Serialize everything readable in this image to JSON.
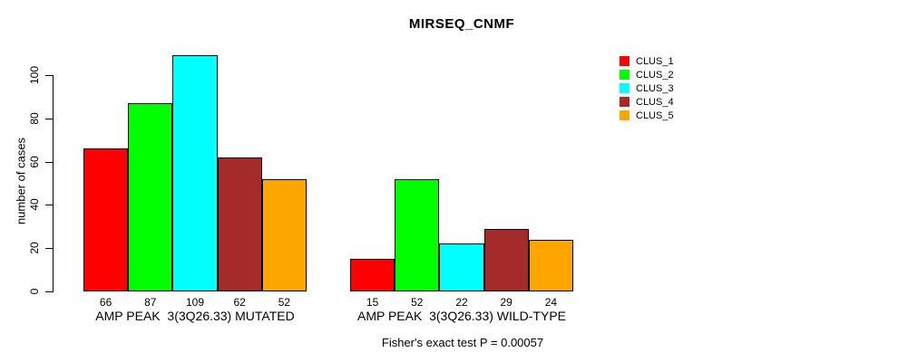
{
  "title": "MIRSEQ_CNMF",
  "ylabel": "number of cases",
  "footnote": "Fisher's exact test P = 0.00057",
  "chart_data": {
    "type": "bar",
    "title": "MIRSEQ_CNMF",
    "ylabel": "number of cases",
    "xlabel": "",
    "ylim": [
      0,
      109
    ],
    "yticks": [
      0,
      20,
      40,
      60,
      80,
      100
    ],
    "grid": false,
    "legend_position": "right",
    "categories": [
      "CLUS_1",
      "CLUS_2",
      "CLUS_3",
      "CLUS_4",
      "CLUS_5"
    ],
    "series": [
      {
        "name": "CLUS_1",
        "color": "#FF0000"
      },
      {
        "name": "CLUS_2",
        "color": "#00FF00"
      },
      {
        "name": "CLUS_3",
        "color": "#00FFFF"
      },
      {
        "name": "CLUS_4",
        "color": "#A52A2A"
      },
      {
        "name": "CLUS_5",
        "color": "#FFA500"
      }
    ],
    "groups": [
      {
        "label": "AMP PEAK  3(3Q26.33) MUTATED",
        "values": [
          66,
          87,
          109,
          62,
          52
        ]
      },
      {
        "label": "AMP PEAK  3(3Q26.33) WILD-TYPE",
        "values": [
          15,
          52,
          22,
          29,
          24
        ]
      }
    ],
    "annotation": "Fisher's exact test P = 0.00057",
    "bar_value_labels_shown": true
  }
}
